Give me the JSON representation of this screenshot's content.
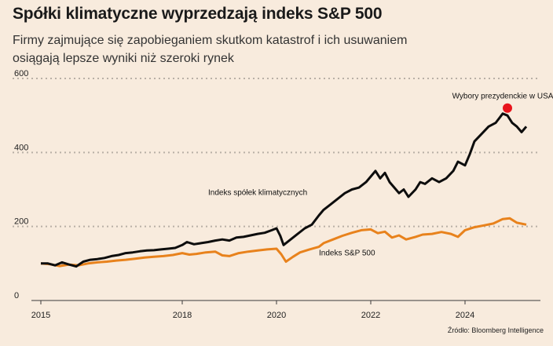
{
  "title": "Spółki klimatyczne wyprzedzają indeks S&P 500",
  "subtitle": "Firmy zajmujące się zapobieganiem skutkom katastrof i ich usuwaniem osiągają lepsze wyniki niż szeroki rynek",
  "source": "Źródło: Bloomberg Intelligence",
  "chart_data": {
    "type": "line",
    "xlabel": "",
    "ylabel": "",
    "xlim": [
      2014.8,
      2025.6
    ],
    "ylim": [
      0,
      600
    ],
    "x_ticks": [
      {
        "value": 2015,
        "label": "2015"
      },
      {
        "value": 2018,
        "label": "2018"
      },
      {
        "value": 2020,
        "label": "2020"
      },
      {
        "value": 2022,
        "label": "2022"
      },
      {
        "value": 2024,
        "label": "2024"
      }
    ],
    "y_ticks": [
      {
        "value": 0,
        "label": "0"
      },
      {
        "value": 200,
        "label": "200"
      },
      {
        "value": 400,
        "label": "400"
      },
      {
        "value": 600,
        "label": "600"
      }
    ],
    "grid": "horizontal-dotted",
    "legend": "inline-labels",
    "colors": {
      "climate": "#0d0d0d",
      "sp500": "#e8821c",
      "marker": "#e8141c",
      "grid": "#b9b0a6",
      "background": "#f8ebdd"
    },
    "series": [
      {
        "name": "Indeks spółek klimatycznych",
        "key": "climate",
        "points": [
          [
            2015.0,
            100
          ],
          [
            2015.15,
            100
          ],
          [
            2015.3,
            95
          ],
          [
            2015.45,
            103
          ],
          [
            2015.6,
            97
          ],
          [
            2015.75,
            92
          ],
          [
            2015.9,
            105
          ],
          [
            2016.05,
            110
          ],
          [
            2016.2,
            112
          ],
          [
            2016.35,
            115
          ],
          [
            2016.5,
            120
          ],
          [
            2016.65,
            123
          ],
          [
            2016.8,
            128
          ],
          [
            2016.95,
            130
          ],
          [
            2017.1,
            133
          ],
          [
            2017.25,
            135
          ],
          [
            2017.4,
            136
          ],
          [
            2017.55,
            138
          ],
          [
            2017.7,
            140
          ],
          [
            2017.85,
            142
          ],
          [
            2018.0,
            150
          ],
          [
            2018.1,
            158
          ],
          [
            2018.25,
            152
          ],
          [
            2018.4,
            155
          ],
          [
            2018.55,
            158
          ],
          [
            2018.7,
            162
          ],
          [
            2018.85,
            165
          ],
          [
            2019.0,
            162
          ],
          [
            2019.15,
            170
          ],
          [
            2019.3,
            172
          ],
          [
            2019.45,
            176
          ],
          [
            2019.6,
            180
          ],
          [
            2019.75,
            183
          ],
          [
            2019.9,
            190
          ],
          [
            2020.0,
            195
          ],
          [
            2020.08,
            175
          ],
          [
            2020.15,
            150
          ],
          [
            2020.3,
            165
          ],
          [
            2020.45,
            180
          ],
          [
            2020.6,
            195
          ],
          [
            2020.75,
            205
          ],
          [
            2020.9,
            230
          ],
          [
            2021.0,
            245
          ],
          [
            2021.15,
            260
          ],
          [
            2021.3,
            275
          ],
          [
            2021.45,
            290
          ],
          [
            2021.6,
            300
          ],
          [
            2021.75,
            305
          ],
          [
            2021.9,
            320
          ],
          [
            2022.0,
            335
          ],
          [
            2022.1,
            350
          ],
          [
            2022.2,
            330
          ],
          [
            2022.3,
            345
          ],
          [
            2022.4,
            320
          ],
          [
            2022.5,
            305
          ],
          [
            2022.6,
            290
          ],
          [
            2022.7,
            300
          ],
          [
            2022.8,
            280
          ],
          [
            2022.95,
            300
          ],
          [
            2023.05,
            320
          ],
          [
            2023.15,
            315
          ],
          [
            2023.3,
            330
          ],
          [
            2023.45,
            320
          ],
          [
            2023.6,
            330
          ],
          [
            2023.75,
            350
          ],
          [
            2023.85,
            375
          ],
          [
            2024.0,
            365
          ],
          [
            2024.1,
            395
          ],
          [
            2024.2,
            430
          ],
          [
            2024.35,
            450
          ],
          [
            2024.5,
            470
          ],
          [
            2024.65,
            480
          ],
          [
            2024.8,
            505
          ],
          [
            2024.9,
            500
          ],
          [
            2025.0,
            480
          ],
          [
            2025.1,
            470
          ],
          [
            2025.2,
            455
          ],
          [
            2025.3,
            470
          ]
        ]
      },
      {
        "name": "Indeks S&P 500",
        "key": "sp500",
        "points": [
          [
            2015.0,
            100
          ],
          [
            2015.2,
            98
          ],
          [
            2015.4,
            93
          ],
          [
            2015.6,
            97
          ],
          [
            2015.8,
            95
          ],
          [
            2016.0,
            100
          ],
          [
            2016.2,
            103
          ],
          [
            2016.4,
            105
          ],
          [
            2016.6,
            108
          ],
          [
            2016.8,
            110
          ],
          [
            2017.0,
            113
          ],
          [
            2017.2,
            116
          ],
          [
            2017.4,
            118
          ],
          [
            2017.6,
            120
          ],
          [
            2017.8,
            123
          ],
          [
            2018.0,
            128
          ],
          [
            2018.15,
            124
          ],
          [
            2018.3,
            126
          ],
          [
            2018.5,
            130
          ],
          [
            2018.7,
            132
          ],
          [
            2018.85,
            122
          ],
          [
            2019.0,
            120
          ],
          [
            2019.2,
            128
          ],
          [
            2019.4,
            132
          ],
          [
            2019.6,
            135
          ],
          [
            2019.8,
            138
          ],
          [
            2020.0,
            140
          ],
          [
            2020.1,
            125
          ],
          [
            2020.2,
            105
          ],
          [
            2020.35,
            118
          ],
          [
            2020.5,
            130
          ],
          [
            2020.7,
            138
          ],
          [
            2020.9,
            145
          ],
          [
            2021.0,
            155
          ],
          [
            2021.2,
            165
          ],
          [
            2021.4,
            175
          ],
          [
            2021.6,
            183
          ],
          [
            2021.8,
            190
          ],
          [
            2022.0,
            192
          ],
          [
            2022.15,
            182
          ],
          [
            2022.3,
            186
          ],
          [
            2022.45,
            170
          ],
          [
            2022.6,
            176
          ],
          [
            2022.75,
            165
          ],
          [
            2022.95,
            172
          ],
          [
            2023.1,
            178
          ],
          [
            2023.3,
            180
          ],
          [
            2023.5,
            185
          ],
          [
            2023.7,
            180
          ],
          [
            2023.85,
            172
          ],
          [
            2024.0,
            190
          ],
          [
            2024.2,
            198
          ],
          [
            2024.4,
            203
          ],
          [
            2024.6,
            208
          ],
          [
            2024.8,
            220
          ],
          [
            2024.95,
            222
          ],
          [
            2025.1,
            210
          ],
          [
            2025.3,
            205
          ]
        ]
      }
    ],
    "annotations": [
      {
        "text": "Indeks spółek klimatycznych",
        "series": "climate"
      },
      {
        "text": "Indeks S&P 500",
        "series": "sp500"
      },
      {
        "text": "Wybory prezydenckie w USA",
        "x": 2024.9,
        "y": 520
      }
    ]
  }
}
